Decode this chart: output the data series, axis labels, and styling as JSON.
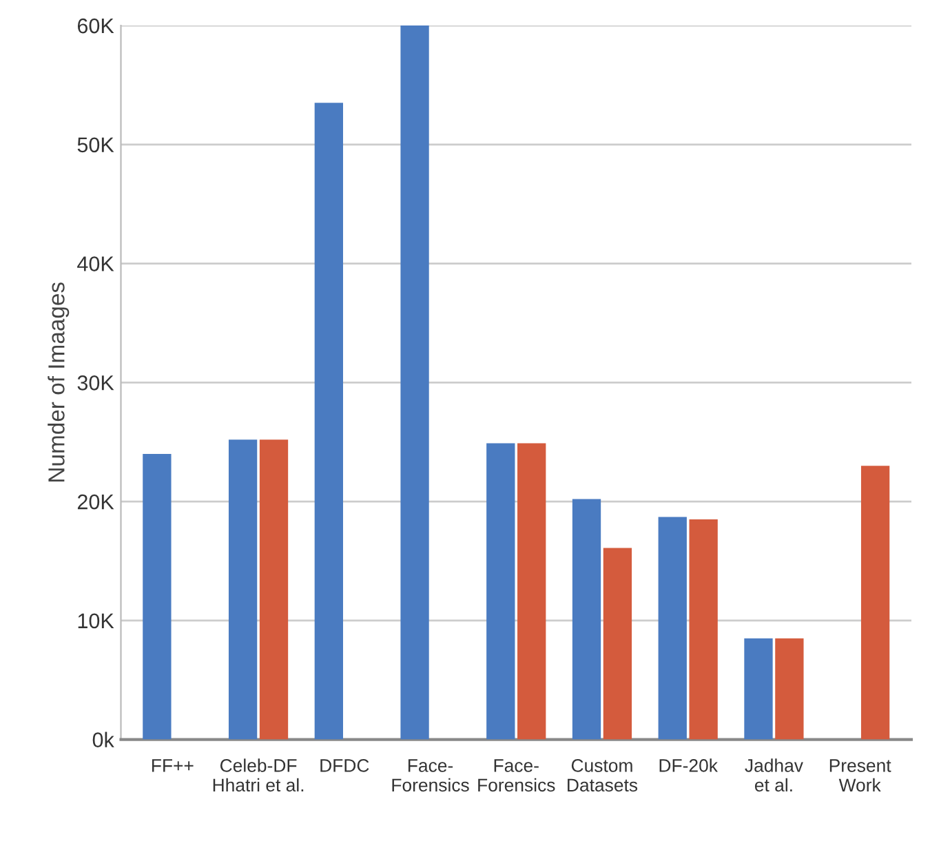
{
  "chart_data": {
    "type": "bar",
    "ylabel": "Numder of Imaages",
    "categories": [
      "FF++",
      "Celeb-DF\nHhatri et al.",
      "DFDC",
      "Face-\nForensics",
      "Face-\nForensics",
      "Custom\nDatasets",
      "DF-20k",
      "Jadhav\net al.",
      "Present\nWork"
    ],
    "series": [
      {
        "color": "#4a7bc1",
        "values": [
          24000,
          25200,
          53500,
          60000,
          24900,
          20200,
          18700,
          8500,
          null
        ]
      },
      {
        "color": "#d45b3d",
        "values": [
          null,
          25200,
          null,
          null,
          24900,
          16100,
          18500,
          8500,
          23000
        ]
      }
    ],
    "ylim": [
      0,
      60000
    ],
    "yticks": [
      {
        "value": 0,
        "label": "0k"
      },
      {
        "value": 10000,
        "label": "10K"
      },
      {
        "value": 20000,
        "label": "20K"
      },
      {
        "value": 30000,
        "label": "30K"
      },
      {
        "value": 40000,
        "label": "40K"
      },
      {
        "value": 50000,
        "label": "50K"
      },
      {
        "value": 60000,
        "label": "60K"
      }
    ],
    "grid": "y",
    "legend": false
  }
}
